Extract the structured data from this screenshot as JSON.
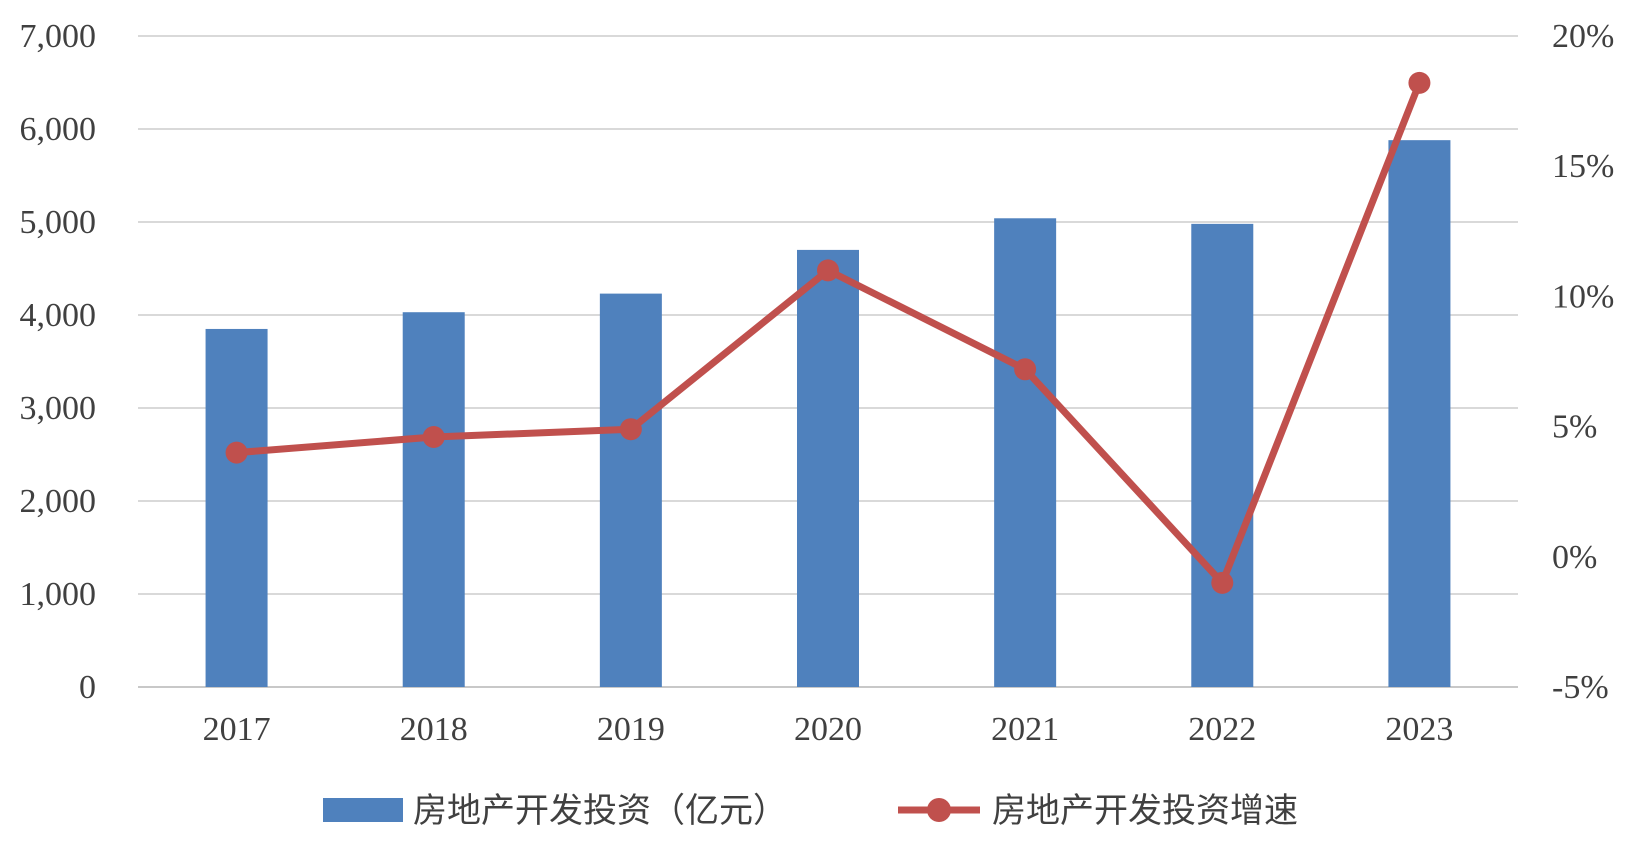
{
  "chart_data": {
    "type": "bar+line",
    "categories": [
      "2017",
      "2018",
      "2019",
      "2020",
      "2021",
      "2022",
      "2023"
    ],
    "series": [
      {
        "name": "房地产开发投资（亿元）",
        "type": "bar",
        "axis": "left",
        "color": "#4f81bd",
        "values": [
          3850,
          4030,
          4230,
          4700,
          5040,
          4980,
          5880
        ]
      },
      {
        "name": "房地产开发投资增速",
        "type": "line",
        "axis": "right",
        "color": "#c0504d",
        "values": [
          4.0,
          4.6,
          4.9,
          11.0,
          7.2,
          -1.0,
          18.2
        ]
      }
    ],
    "y_left": {
      "min": 0,
      "max": 7000,
      "step": 1000,
      "ticks": [
        "0",
        "1,000",
        "2,000",
        "3,000",
        "4,000",
        "5,000",
        "6,000",
        "7,000"
      ]
    },
    "y_right": {
      "min": -5,
      "max": 20,
      "step": 5,
      "ticks": [
        "-5%",
        "0%",
        "5%",
        "10%",
        "15%",
        "20%"
      ]
    },
    "gridlines": true,
    "legend_position": "bottom-center"
  }
}
